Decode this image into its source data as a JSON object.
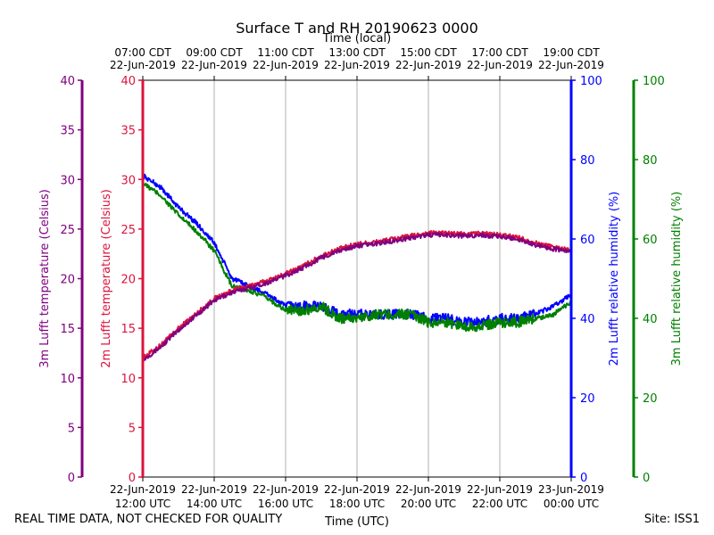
{
  "chart_data": {
    "type": "line",
    "title": "Surface T and RH 20190623 0000",
    "top_axis_label": "Time (local)",
    "xlabel": "Time (UTC)",
    "x_hours_utc": [
      12,
      14,
      16,
      18,
      20,
      22,
      24
    ],
    "xlim": [
      12,
      24
    ],
    "xticks_bottom": [
      [
        "22-Jun-2019",
        "12:00 UTC"
      ],
      [
        "22-Jun-2019",
        "14:00 UTC"
      ],
      [
        "22-Jun-2019",
        "16:00 UTC"
      ],
      [
        "22-Jun-2019",
        "18:00 UTC"
      ],
      [
        "22-Jun-2019",
        "20:00 UTC"
      ],
      [
        "22-Jun-2019",
        "22:00 UTC"
      ],
      [
        "23-Jun-2019",
        "00:00 UTC"
      ]
    ],
    "xticks_top": [
      [
        "07:00 CDT",
        "22-Jun-2019"
      ],
      [
        "09:00 CDT",
        "22-Jun-2019"
      ],
      [
        "11:00 CDT",
        "22-Jun-2019"
      ],
      [
        "13:00 CDT",
        "22-Jun-2019"
      ],
      [
        "15:00 CDT",
        "22-Jun-2019"
      ],
      [
        "17:00 CDT",
        "22-Jun-2019"
      ],
      [
        "19:00 CDT",
        "22-Jun-2019"
      ]
    ],
    "axes": {
      "temp_3m": {
        "label": "3m Lufft temperature (Celsius)",
        "ylim": [
          0,
          40
        ],
        "ticks": [
          0,
          5,
          10,
          15,
          20,
          25,
          30,
          35,
          40
        ],
        "color": "#800080"
      },
      "temp_2m": {
        "label": "2m Lufft temperature (Celsius)",
        "ylim": [
          0,
          40
        ],
        "ticks": [
          0,
          5,
          10,
          15,
          20,
          25,
          30,
          35,
          40
        ],
        "color": "#dc143c"
      },
      "rh_2m": {
        "label": "2m Lufft relative humidity (%)",
        "ylim": [
          0,
          100
        ],
        "ticks": [
          0,
          20,
          40,
          60,
          80,
          100
        ],
        "color": "#0000ff"
      },
      "rh_3m": {
        "label": "3m Lufft relative humidity (%)",
        "ylim": [
          0,
          100
        ],
        "ticks": [
          0,
          20,
          40,
          60,
          80,
          100
        ],
        "color": "#008000"
      }
    },
    "series": [
      {
        "name": "2m Lufft temperature",
        "axis": "temp_2m",
        "color": "#dc143c",
        "x": [
          12,
          12.5,
          13,
          13.5,
          14,
          14.5,
          15,
          15.5,
          16,
          16.5,
          17,
          17.5,
          18,
          18.5,
          19,
          19.5,
          20,
          20.5,
          21,
          21.5,
          22,
          22.5,
          23,
          23.5,
          24
        ],
        "y": [
          12.0,
          13.3,
          15.0,
          16.5,
          18.0,
          18.8,
          19.3,
          19.8,
          20.5,
          21.3,
          22.3,
          23.0,
          23.5,
          23.7,
          24.0,
          24.3,
          24.6,
          24.6,
          24.5,
          24.6,
          24.4,
          24.2,
          23.6,
          23.2,
          22.9
        ]
      },
      {
        "name": "3m Lufft temperature",
        "axis": "temp_3m",
        "color": "#800080",
        "x": [
          12,
          12.5,
          13,
          13.5,
          14,
          14.5,
          15,
          15.5,
          16,
          16.5,
          17,
          17.5,
          18,
          18.5,
          19,
          19.5,
          20,
          20.5,
          21,
          21.5,
          22,
          22.5,
          23,
          23.5,
          24
        ],
        "y": [
          11.8,
          13.1,
          14.8,
          16.3,
          17.8,
          18.6,
          19.1,
          19.6,
          20.3,
          21.1,
          22.1,
          22.8,
          23.3,
          23.5,
          23.8,
          24.1,
          24.4,
          24.4,
          24.3,
          24.4,
          24.2,
          24.0,
          23.4,
          23.0,
          22.7
        ]
      },
      {
        "name": "2m Lufft relative humidity",
        "axis": "rh_2m",
        "color": "#0000ff",
        "x": [
          12,
          12.5,
          13,
          13.5,
          14,
          14.5,
          15,
          15.5,
          16,
          16.5,
          17,
          17.5,
          18,
          18.5,
          19,
          19.5,
          20,
          20.5,
          21,
          21.5,
          22,
          22.5,
          23,
          23.5,
          24
        ],
        "y": [
          76,
          73,
          68,
          64,
          59,
          50,
          48,
          46,
          43,
          43,
          43,
          41,
          41,
          41,
          41,
          41,
          40,
          40,
          39,
          39,
          40,
          40,
          41,
          43,
          46
        ]
      },
      {
        "name": "3m Lufft relative humidity",
        "axis": "rh_3m",
        "color": "#008000",
        "x": [
          12,
          12.5,
          13,
          13.5,
          14,
          14.5,
          15,
          15.5,
          16,
          16.5,
          17,
          17.5,
          18,
          18.5,
          19,
          19.5,
          20,
          20.5,
          21,
          21.5,
          22,
          22.5,
          23,
          23.5,
          24
        ],
        "y": [
          74,
          71,
          66,
          62,
          57,
          48,
          47,
          45,
          42,
          42,
          43,
          40,
          40,
          41,
          41,
          41,
          39,
          39,
          38,
          38,
          39,
          39,
          40,
          41,
          44
        ]
      }
    ]
  },
  "footer": {
    "left": "REAL TIME DATA, NOT CHECKED FOR QUALITY",
    "right": "Site: ISS1"
  }
}
